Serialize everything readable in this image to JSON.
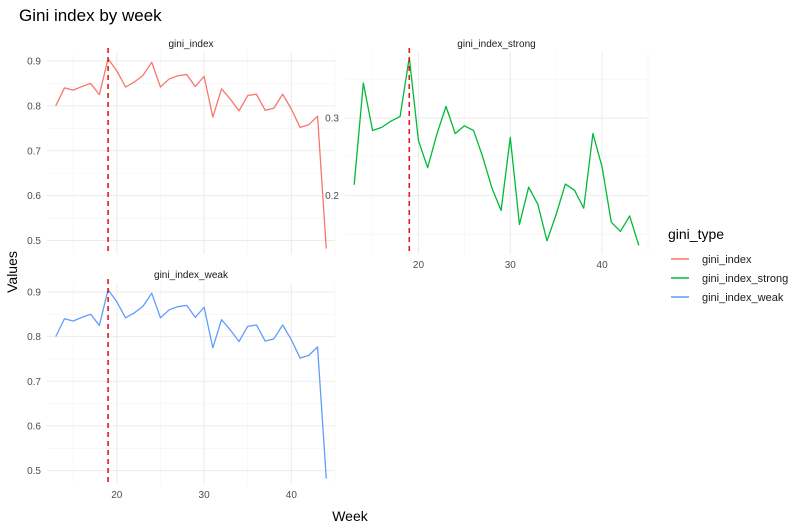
{
  "chart_data": {
    "type": "line",
    "title": "Gini index by week",
    "xlabel": "Week",
    "ylabel": "Values",
    "x_ticks": [
      20,
      30,
      40
    ],
    "xlim": [
      12,
      45
    ],
    "reference_line": {
      "x": 19,
      "color": "#e41a1c",
      "style": "dashed"
    },
    "legend": {
      "title": "gini_type",
      "position": "right",
      "entries": [
        "gini_index",
        "gini_index_strong",
        "gini_index_weak"
      ]
    },
    "grid": true,
    "panels": [
      {
        "name": "gini_index",
        "color": "#F8766D",
        "ylim": [
          0.47,
          0.92
        ],
        "y_ticks": [
          0.5,
          0.6,
          0.7,
          0.8,
          0.9
        ],
        "x": [
          13,
          14,
          15,
          16,
          17,
          18,
          19,
          20,
          21,
          22,
          23,
          24,
          25,
          26,
          27,
          28,
          29,
          30,
          31,
          32,
          33,
          34,
          35,
          36,
          37,
          38,
          39,
          40,
          41,
          42,
          43,
          44
        ],
        "y": [
          0.8,
          0.84,
          0.835,
          0.843,
          0.85,
          0.825,
          0.905,
          0.878,
          0.842,
          0.853,
          0.868,
          0.897,
          0.842,
          0.86,
          0.867,
          0.87,
          0.843,
          0.866,
          0.775,
          0.838,
          0.815,
          0.789,
          0.823,
          0.826,
          0.79,
          0.795,
          0.826,
          0.793,
          0.752,
          0.758,
          0.777,
          0.482
        ]
      },
      {
        "name": "gini_index_strong",
        "color": "#00BA38",
        "ylim": [
          0.125,
          0.385
        ],
        "y_ticks": [
          0.2,
          0.3
        ],
        "x": [
          13,
          14,
          15,
          16,
          17,
          18,
          19,
          20,
          21,
          22,
          23,
          24,
          25,
          26,
          27,
          28,
          29,
          30,
          31,
          32,
          33,
          34,
          35,
          36,
          37,
          38,
          39,
          40,
          41,
          42,
          43,
          44
        ],
        "y": [
          0.214,
          0.345,
          0.284,
          0.288,
          0.296,
          0.302,
          0.378,
          0.271,
          0.236,
          0.279,
          0.315,
          0.28,
          0.29,
          0.284,
          0.25,
          0.21,
          0.181,
          0.275,
          0.163,
          0.211,
          0.189,
          0.142,
          0.176,
          0.215,
          0.207,
          0.184,
          0.28,
          0.237,
          0.166,
          0.154,
          0.174,
          0.136
        ]
      },
      {
        "name": "gini_index_weak",
        "color": "#619CFF",
        "ylim": [
          0.47,
          0.92
        ],
        "y_ticks": [
          0.5,
          0.6,
          0.7,
          0.8,
          0.9
        ],
        "x": [
          13,
          14,
          15,
          16,
          17,
          18,
          19,
          20,
          21,
          22,
          23,
          24,
          25,
          26,
          27,
          28,
          29,
          30,
          31,
          32,
          33,
          34,
          35,
          36,
          37,
          38,
          39,
          40,
          41,
          42,
          43,
          44
        ],
        "y": [
          0.8,
          0.84,
          0.835,
          0.843,
          0.85,
          0.825,
          0.905,
          0.878,
          0.842,
          0.853,
          0.868,
          0.897,
          0.842,
          0.86,
          0.867,
          0.87,
          0.843,
          0.866,
          0.775,
          0.838,
          0.815,
          0.789,
          0.823,
          0.826,
          0.79,
          0.795,
          0.826,
          0.793,
          0.752,
          0.758,
          0.777,
          0.482
        ]
      }
    ]
  }
}
